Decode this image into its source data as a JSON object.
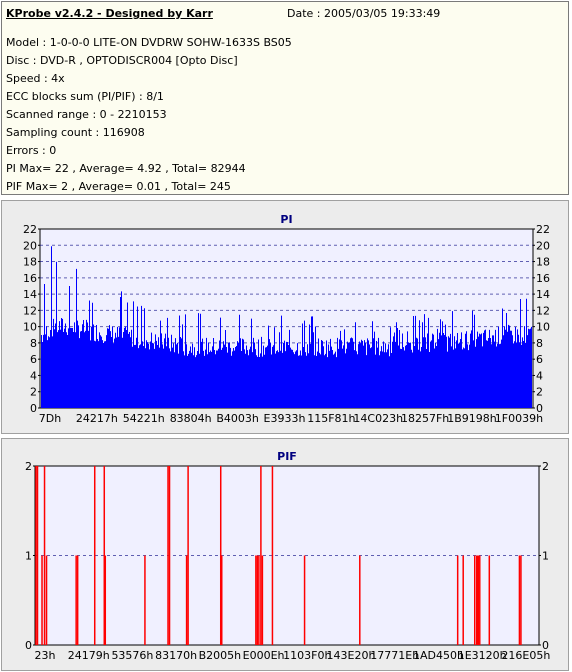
{
  "header": {
    "title": "KProbe v2.4.2 - Designed by Karr",
    "date": "Date : 2005/03/05 19:33:49"
  },
  "info_lines": [
    "Model : 1-0-0-0 LITE-ON DVDRW SOHW-1633S BS05",
    "Disc : DVD-R , OPTODISCR004 [Opto Disc]",
    "Speed : 4x",
    "ECC blocks sum (PI/PIF) : 8/1",
    "Scanned range : 0 - 2210153",
    "Sampling count : 116908",
    "Errors : 0",
    "PI Max= 22 , Average= 4.92 , Total= 82944",
    "PIF Max= 2 , Average= 0.01 , Total= 245"
  ],
  "colors": {
    "pi_bar": "#0000ff",
    "pif_bar": "#ff0000",
    "plot_bg": "#f0f0ff",
    "grid": "#000080",
    "title": "#000080"
  },
  "chart_data": [
    {
      "type": "bar",
      "title": "PI",
      "ylim": [
        0,
        22
      ],
      "y_ticks": [
        "0",
        "2",
        "4",
        "6",
        "8",
        "10",
        "12",
        "14",
        "16",
        "18",
        "20",
        "22"
      ],
      "x_tick_labels": [
        "7Dh",
        "24217h",
        "54221h",
        "83804h",
        "B4003h",
        "E3933h",
        "115F81h",
        "14C023h",
        "18257Fh",
        "1B9198h",
        "1F0039h"
      ],
      "x_range": [
        0,
        2210153
      ],
      "approx_profile": {
        "x_fraction": [
          0.0,
          0.03,
          0.06,
          0.1,
          0.15,
          0.2,
          0.25,
          0.3,
          0.35,
          0.4,
          0.5,
          0.6,
          0.7,
          0.8,
          0.9,
          0.95,
          1.0
        ],
        "typical": [
          9,
          10,
          10,
          9.5,
          9,
          8.5,
          8,
          7.5,
          7.5,
          7.5,
          7.5,
          7.5,
          7.5,
          8,
          8.5,
          9,
          9
        ],
        "peak": [
          16,
          22,
          18,
          16,
          15,
          14,
          12,
          12,
          12,
          12,
          12,
          12,
          11,
          12,
          12,
          14,
          15
        ]
      },
      "grid": "dashed, horizontal"
    },
    {
      "type": "bar",
      "title": "PIF",
      "ylim": [
        0,
        2
      ],
      "y_ticks": [
        "0",
        "1",
        "2"
      ],
      "x_tick_labels": [
        "23h",
        "24179h",
        "53576h",
        "83170h",
        "B2005h",
        "E000Eh",
        "1103F0h",
        "143E20h",
        "17771Eh",
        "1AD450h",
        "1E3120h",
        "216E05h"
      ],
      "x_range": [
        0,
        2210153
      ],
      "spikes": [
        {
          "x_fraction": 0.0,
          "value": 2
        },
        {
          "x_fraction": 0.003,
          "value": 2
        },
        {
          "x_fraction": 0.012,
          "value": 1
        },
        {
          "x_fraction": 0.017,
          "value": 2
        },
        {
          "x_fraction": 0.021,
          "value": 1
        },
        {
          "x_fraction": 0.08,
          "value": 1
        },
        {
          "x_fraction": 0.083,
          "value": 1
        },
        {
          "x_fraction": 0.117,
          "value": 2
        },
        {
          "x_fraction": 0.136,
          "value": 2
        },
        {
          "x_fraction": 0.138,
          "value": 1
        },
        {
          "x_fraction": 0.217,
          "value": 1
        },
        {
          "x_fraction": 0.263,
          "value": 2
        },
        {
          "x_fraction": 0.266,
          "value": 2
        },
        {
          "x_fraction": 0.3,
          "value": 1
        },
        {
          "x_fraction": 0.303,
          "value": 2
        },
        {
          "x_fraction": 0.368,
          "value": 2
        },
        {
          "x_fraction": 0.37,
          "value": 1
        },
        {
          "x_fraction": 0.438,
          "value": 1
        },
        {
          "x_fraction": 0.441,
          "value": 1
        },
        {
          "x_fraction": 0.444,
          "value": 1
        },
        {
          "x_fraction": 0.448,
          "value": 2
        },
        {
          "x_fraction": 0.451,
          "value": 1
        },
        {
          "x_fraction": 0.471,
          "value": 2
        },
        {
          "x_fraction": 0.535,
          "value": 1
        },
        {
          "x_fraction": 0.645,
          "value": 1
        },
        {
          "x_fraction": 0.84,
          "value": 1
        },
        {
          "x_fraction": 0.851,
          "value": 1
        },
        {
          "x_fraction": 0.874,
          "value": 1
        },
        {
          "x_fraction": 0.878,
          "value": 1
        },
        {
          "x_fraction": 0.881,
          "value": 1
        },
        {
          "x_fraction": 0.884,
          "value": 1
        },
        {
          "x_fraction": 0.903,
          "value": 1
        },
        {
          "x_fraction": 0.963,
          "value": 1
        },
        {
          "x_fraction": 0.966,
          "value": 1
        }
      ],
      "grid": "dashed, horizontal"
    }
  ]
}
